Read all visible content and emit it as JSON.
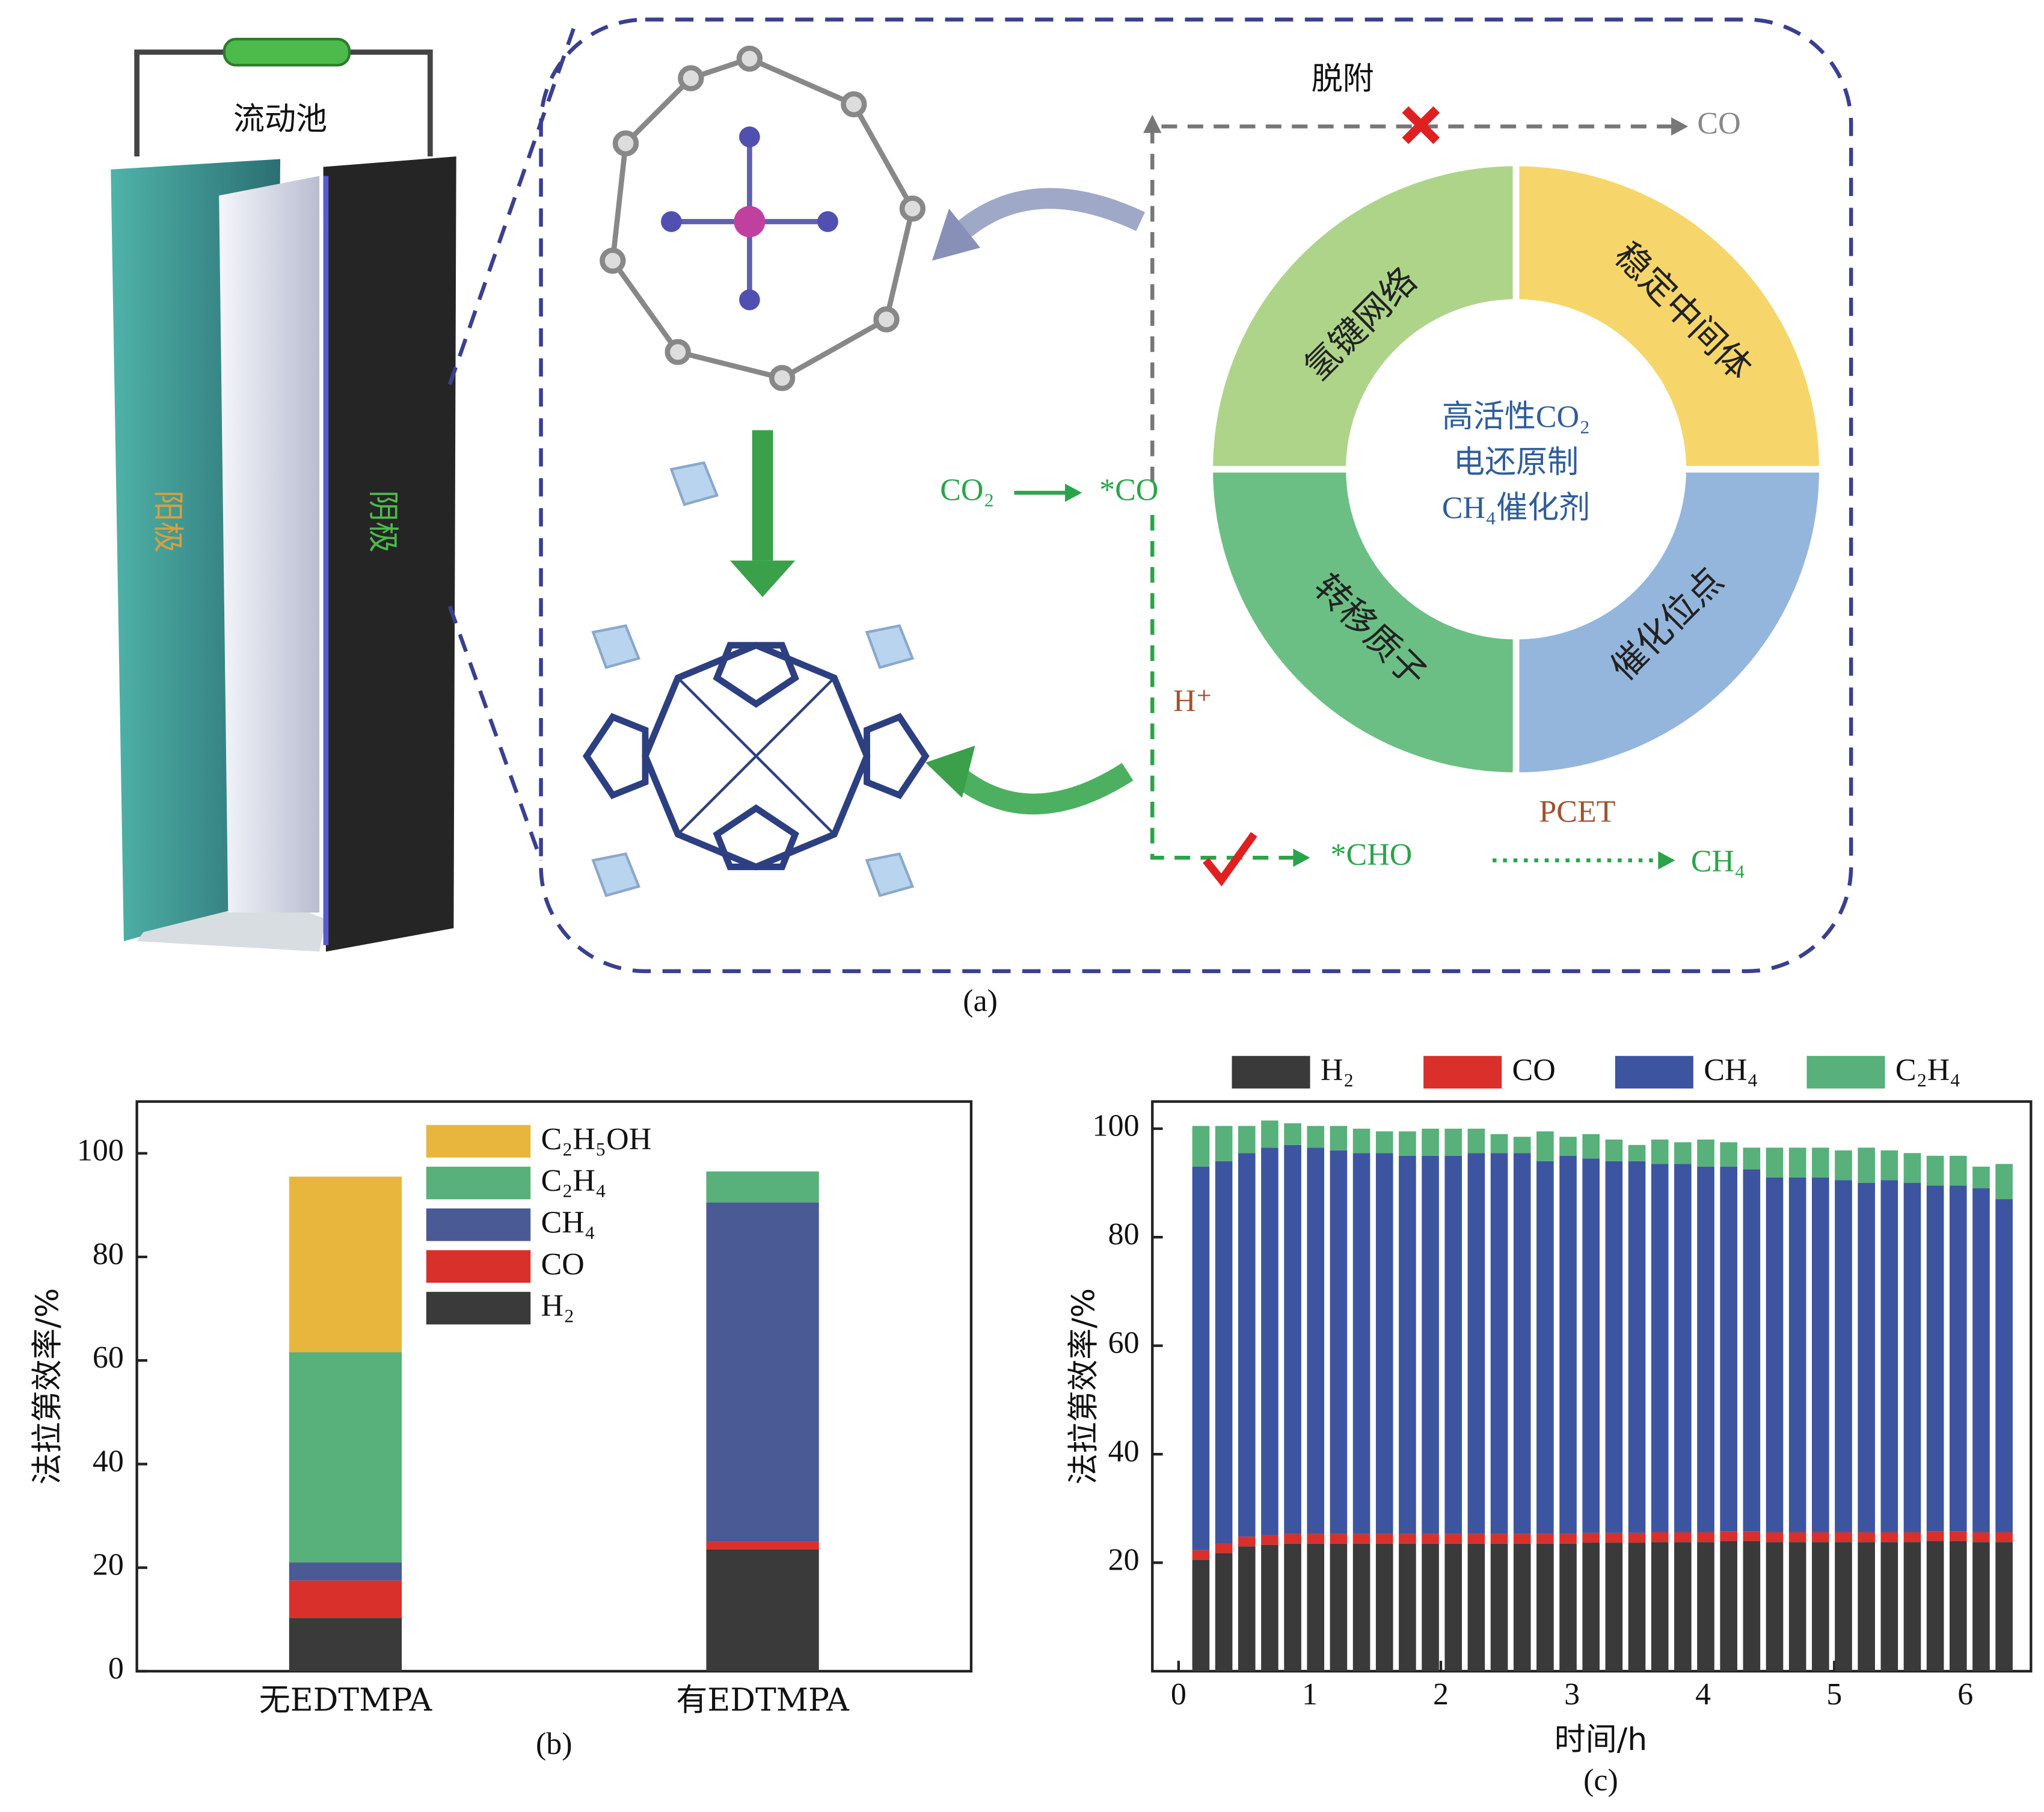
{
  "diagram": {
    "cell_label": "流动池",
    "anode": "阳极",
    "cathode": "阴极",
    "desorption": "脱附",
    "co_product": "CO",
    "co2": "CO₂",
    "co_adsorbed": "*CO",
    "proton": "H⁺",
    "cho": "*CHO",
    "ch4": "CH₄",
    "pcet": "PCET",
    "ring": [
      "氢键网络",
      "稳定中间体",
      "转移质子",
      "催化位点"
    ],
    "center": [
      "高活性CO₂",
      "电还原制",
      "CH₄催化剂"
    ],
    "caption": "(a)"
  },
  "chart_data": [
    {
      "type": "bar",
      "stacked": true,
      "caption": "(b)",
      "y_label": "法拉第效率/%",
      "categories": [
        "无EDTMPA",
        "有EDTMPA"
      ],
      "series": [
        {
          "name": "H₂",
          "color": "#3a3a3a",
          "values": [
            10.3,
            23.5
          ]
        },
        {
          "name": "CO",
          "color": "#d9302c",
          "values": [
            7.2,
            1.5
          ]
        },
        {
          "name": "CH₄",
          "color": "#4a5a94",
          "values": [
            3.5,
            65.5
          ]
        },
        {
          "name": "C₂H₄",
          "color": "#58b07a",
          "values": [
            40.6,
            6
          ]
        },
        {
          "name": "C₂H₅OH",
          "color": "#e8b63c",
          "values": [
            33.9,
            0
          ]
        }
      ],
      "ylim": [
        0,
        110
      ],
      "yticks": [
        0,
        20,
        40,
        60,
        80,
        100
      ],
      "legend_position": "upper center",
      "legend_reversed": true
    },
    {
      "type": "bar",
      "stacked": true,
      "caption": "(c)",
      "x_label": "时间/h",
      "y_label": "法拉第效率/%",
      "x": [
        0.17,
        0.345,
        0.52,
        0.695,
        0.87,
        1.045,
        1.22,
        1.395,
        1.57,
        1.745,
        1.92,
        2.095,
        2.27,
        2.445,
        2.62,
        2.795,
        2.97,
        3.145,
        3.32,
        3.495,
        3.67,
        3.845,
        4.02,
        4.195,
        4.37,
        4.545,
        4.72,
        4.895,
        5.07,
        5.245,
        5.42,
        5.595,
        5.77,
        5.945,
        6.12,
        6.295
      ],
      "series": [
        {
          "name": "H₂",
          "color": "#3a3a3a",
          "values": [
            20.5,
            21.8,
            23,
            23.3,
            23.5,
            23.5,
            23.5,
            23.5,
            23.5,
            23.5,
            23.5,
            23.5,
            23.5,
            23.5,
            23.5,
            23.5,
            23.5,
            23.7,
            23.7,
            23.7,
            23.8,
            23.8,
            23.8,
            24,
            24,
            23.8,
            23.8,
            23.8,
            23.8,
            23.8,
            23.8,
            23.8,
            24,
            24,
            23.8,
            23.8
          ]
        },
        {
          "name": "CO",
          "color": "#d9302c",
          "values": [
            1.8,
            1.8,
            1.8,
            1.8,
            1.8,
            1.8,
            1.8,
            1.8,
            1.8,
            1.8,
            1.8,
            1.8,
            1.8,
            1.8,
            1.8,
            1.8,
            1.8,
            1.8,
            1.8,
            1.8,
            1.8,
            1.8,
            1.8,
            1.8,
            1.8,
            1.8,
            1.8,
            1.8,
            1.8,
            1.8,
            1.8,
            1.8,
            1.8,
            1.8,
            1.8,
            1.8
          ]
        },
        {
          "name": "CH₄",
          "color": "#3d55a0",
          "values": [
            70.7,
            70.4,
            70.7,
            71.4,
            71.7,
            71.2,
            70.7,
            70.2,
            70.2,
            69.7,
            69.7,
            69.7,
            70.2,
            70.2,
            70.2,
            68.7,
            69.7,
            69,
            68.5,
            68.5,
            67.9,
            67.9,
            67.4,
            67.2,
            66.7,
            65.4,
            65.4,
            65.4,
            64.9,
            64.4,
            64.9,
            64.4,
            63.7,
            63.7,
            63.4,
            61.4
          ]
        },
        {
          "name": "C₂H₄",
          "color": "#58b07a",
          "values": [
            7.5,
            6.5,
            5,
            5,
            4,
            4,
            4.5,
            4.5,
            4,
            4.5,
            5,
            5,
            4.5,
            3.5,
            3,
            5.5,
            3.5,
            4.5,
            4,
            3,
            4.5,
            4,
            5,
            4.5,
            4,
            5.5,
            5.5,
            5.5,
            5.5,
            6.5,
            5.5,
            5.5,
            5.5,
            5.5,
            4,
            6.5
          ]
        }
      ],
      "xlim": [
        -0.2,
        6.5
      ],
      "xticks": [
        0,
        1,
        2,
        3,
        4,
        5,
        6
      ],
      "ylim": [
        0,
        105
      ],
      "yticks": [
        20,
        40,
        60,
        80,
        100
      ],
      "legend_position": "top"
    }
  ]
}
